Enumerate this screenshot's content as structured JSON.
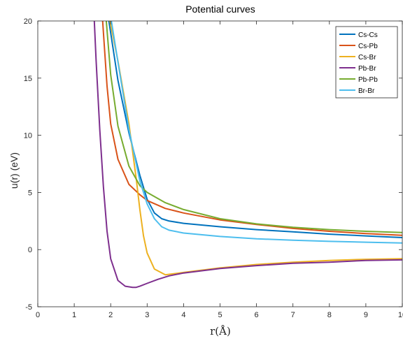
{
  "chart_data": {
    "type": "line",
    "title": "Potential curves",
    "xlabel": "r(Å)",
    "ylabel": "u(r) (eV)",
    "xlim": [
      0,
      10
    ],
    "ylim": [
      -5,
      20
    ],
    "xticks": [
      "0",
      "1",
      "2",
      "3",
      "4",
      "5",
      "6",
      "7",
      "8",
      "9",
      "10"
    ],
    "yticks": [
      "-5",
      "0",
      "5",
      "10",
      "15",
      "20"
    ],
    "grid": false,
    "legend_position": "top-right",
    "series": [
      {
        "name": "Cs-Cs",
        "color": "#0072BD",
        "x": [
          1.95,
          2.2,
          2.5,
          2.8,
          3.0,
          3.2,
          3.4,
          3.6,
          4.0,
          5.0,
          6.0,
          7.0,
          8.0,
          9.0,
          10.0
        ],
        "y": [
          20.0,
          14.8,
          10.2,
          6.5,
          4.4,
          3.2,
          2.7,
          2.5,
          2.3,
          2.0,
          1.75,
          1.55,
          1.35,
          1.2,
          1.05
        ]
      },
      {
        "name": "Cs-Pb",
        "color": "#D95319",
        "x": [
          1.78,
          1.9,
          2.0,
          2.2,
          2.5,
          2.8,
          3.0,
          3.5,
          4.0,
          5.0,
          6.0,
          7.0,
          8.0,
          9.0,
          10.0
        ],
        "y": [
          20.0,
          14.3,
          11.0,
          7.9,
          5.7,
          4.8,
          4.3,
          3.6,
          3.2,
          2.6,
          2.2,
          1.85,
          1.6,
          1.4,
          1.25
        ]
      },
      {
        "name": "Cs-Br",
        "color": "#EDB120",
        "x": [
          1.98,
          2.2,
          2.5,
          2.7,
          2.8,
          2.9,
          3.0,
          3.2,
          3.5,
          4.0,
          5.0,
          6.0,
          7.0,
          8.0,
          9.0,
          10.0
        ],
        "y": [
          20.0,
          16.5,
          11.0,
          6.2,
          3.5,
          1.2,
          -0.3,
          -1.7,
          -2.2,
          -2.0,
          -1.6,
          -1.3,
          -1.1,
          -0.95,
          -0.85,
          -0.8
        ]
      },
      {
        "name": "Pb-Br",
        "color": "#7E2F8E",
        "x": [
          1.55,
          1.6,
          1.7,
          1.8,
          1.9,
          2.0,
          2.2,
          2.4,
          2.6,
          2.7,
          2.8,
          3.0,
          3.3,
          3.6,
          4.0,
          5.0,
          6.0,
          7.0,
          8.0,
          9.0,
          10.0
        ],
        "y": [
          20.0,
          16.5,
          10.5,
          5.5,
          1.6,
          -0.8,
          -2.7,
          -3.2,
          -3.3,
          -3.3,
          -3.2,
          -2.95,
          -2.6,
          -2.3,
          -2.05,
          -1.65,
          -1.4,
          -1.2,
          -1.1,
          -0.95,
          -0.9
        ]
      },
      {
        "name": "Pb-Pb",
        "color": "#77AC30",
        "x": [
          1.88,
          2.0,
          2.2,
          2.5,
          2.8,
          3.0,
          3.5,
          4.0,
          5.0,
          6.0,
          7.0,
          8.0,
          9.0,
          10.0
        ],
        "y": [
          20.0,
          15.3,
          10.8,
          7.3,
          5.6,
          5.0,
          4.1,
          3.5,
          2.7,
          2.25,
          1.95,
          1.75,
          1.6,
          1.5
        ]
      },
      {
        "name": "Br-Br",
        "color": "#4DBEEE",
        "x": [
          2.02,
          2.2,
          2.5,
          2.8,
          3.0,
          3.2,
          3.4,
          3.6,
          4.0,
          5.0,
          6.0,
          7.0,
          8.0,
          9.0,
          10.0
        ],
        "y": [
          20.0,
          16.4,
          10.5,
          6.0,
          4.0,
          2.7,
          2.0,
          1.7,
          1.45,
          1.15,
          0.95,
          0.82,
          0.72,
          0.65,
          0.58
        ]
      }
    ]
  }
}
